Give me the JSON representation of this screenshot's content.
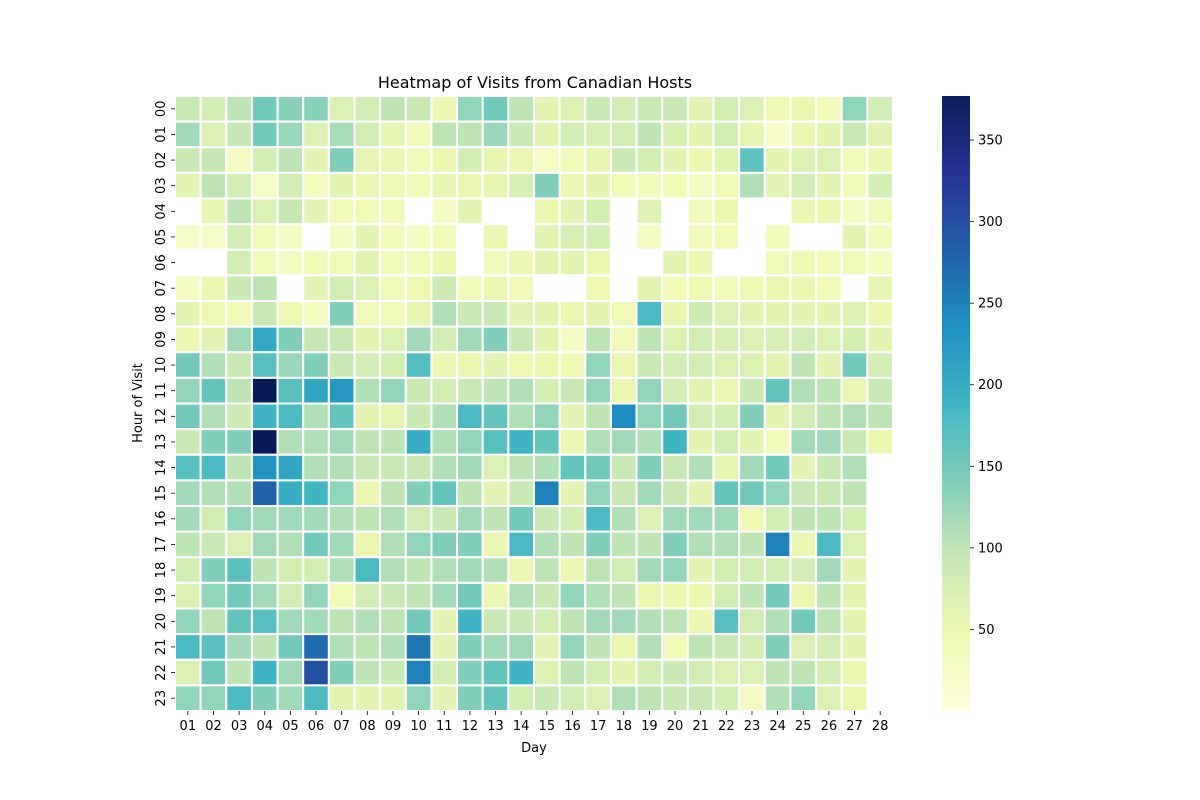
{
  "chart_data": {
    "type": "heatmap",
    "title": "Heatmap of Visits from Canadian Hosts",
    "xlabel": "Day",
    "ylabel": "Hour of Visit",
    "x_categories": [
      "01",
      "02",
      "03",
      "04",
      "05",
      "06",
      "07",
      "08",
      "09",
      "10",
      "11",
      "12",
      "13",
      "14",
      "15",
      "16",
      "17",
      "18",
      "19",
      "20",
      "21",
      "22",
      "23",
      "24",
      "25",
      "26",
      "27",
      "28"
    ],
    "y_categories": [
      "00",
      "01",
      "02",
      "03",
      "04",
      "05",
      "06",
      "07",
      "08",
      "09",
      "10",
      "11",
      "12",
      "13",
      "14",
      "15",
      "16",
      "17",
      "18",
      "19",
      "20",
      "21",
      "22",
      "23"
    ],
    "colorbar": {
      "min": 0,
      "max": 377,
      "ticks": [
        50,
        100,
        150,
        200,
        250,
        300,
        350
      ]
    },
    "colormap": "YlGnBu",
    "missing_color": "#ffffff",
    "values": [
      [
        90,
        80,
        100,
        150,
        135,
        135,
        70,
        80,
        100,
        90,
        50,
        130,
        150,
        100,
        60,
        70,
        90,
        80,
        90,
        90,
        60,
        80,
        70,
        45,
        50,
        40,
        130,
        80
      ],
      [
        120,
        70,
        95,
        150,
        125,
        70,
        115,
        80,
        55,
        40,
        100,
        100,
        125,
        90,
        60,
        80,
        75,
        80,
        100,
        75,
        60,
        80,
        55,
        20,
        50,
        60,
        90,
        60
      ],
      [
        90,
        95,
        30,
        80,
        100,
        60,
        140,
        55,
        50,
        40,
        50,
        80,
        55,
        50,
        25,
        40,
        55,
        90,
        80,
        60,
        50,
        65,
        165,
        60,
        70,
        70,
        40,
        50
      ],
      [
        60,
        100,
        80,
        25,
        80,
        30,
        60,
        50,
        45,
        40,
        55,
        50,
        55,
        75,
        140,
        50,
        60,
        40,
        35,
        40,
        30,
        40,
        110,
        60,
        80,
        60,
        40,
        80
      ],
      [
        null,
        55,
        100,
        70,
        95,
        60,
        40,
        40,
        40,
        null,
        30,
        60,
        null,
        null,
        50,
        60,
        80,
        null,
        65,
        null,
        40,
        50,
        null,
        null,
        50,
        50,
        30,
        40
      ],
      [
        25,
        25,
        80,
        40,
        30,
        null,
        30,
        60,
        35,
        30,
        40,
        null,
        50,
        null,
        60,
        75,
        80,
        null,
        30,
        null,
        40,
        40,
        null,
        35,
        null,
        null,
        60,
        35
      ],
      [
        null,
        null,
        80,
        40,
        30,
        40,
        40,
        60,
        40,
        40,
        50,
        null,
        40,
        50,
        60,
        60,
        50,
        null,
        null,
        60,
        50,
        null,
        null,
        40,
        45,
        40,
        40,
        30
      ],
      [
        30,
        50,
        90,
        100,
        null,
        60,
        80,
        70,
        40,
        45,
        85,
        35,
        50,
        40,
        null,
        null,
        45,
        null,
        60,
        40,
        45,
        35,
        45,
        50,
        50,
        40,
        null,
        55
      ],
      [
        60,
        45,
        40,
        90,
        45,
        30,
        140,
        40,
        40,
        55,
        110,
        90,
        90,
        60,
        60,
        50,
        60,
        40,
        180,
        55,
        85,
        70,
        60,
        60,
        60,
        60,
        70,
        50
      ],
      [
        50,
        60,
        120,
        205,
        140,
        95,
        90,
        60,
        70,
        120,
        80,
        120,
        140,
        90,
        60,
        30,
        100,
        40,
        100,
        70,
        80,
        75,
        70,
        75,
        80,
        70,
        80,
        60
      ],
      [
        150,
        110,
        90,
        170,
        125,
        140,
        90,
        80,
        80,
        175,
        50,
        50,
        60,
        45,
        50,
        45,
        130,
        50,
        90,
        80,
        80,
        70,
        70,
        60,
        100,
        60,
        150,
        80
      ],
      [
        130,
        160,
        100,
        377,
        170,
        210,
        225,
        110,
        130,
        90,
        80,
        90,
        100,
        110,
        80,
        90,
        130,
        50,
        130,
        80,
        60,
        50,
        90,
        160,
        110,
        100,
        50,
        90
      ],
      [
        150,
        110,
        85,
        190,
        180,
        110,
        160,
        60,
        55,
        90,
        110,
        180,
        160,
        110,
        130,
        60,
        100,
        240,
        130,
        150,
        80,
        80,
        140,
        60,
        80,
        100,
        110,
        100
      ],
      [
        90,
        140,
        140,
        377,
        110,
        110,
        120,
        100,
        100,
        200,
        110,
        130,
        170,
        190,
        160,
        50,
        110,
        120,
        110,
        190,
        60,
        80,
        60,
        40,
        120,
        120,
        90,
        50
      ],
      [
        170,
        180,
        100,
        230,
        210,
        110,
        110,
        90,
        90,
        90,
        110,
        120,
        70,
        100,
        110,
        160,
        150,
        90,
        140,
        90,
        110,
        55,
        120,
        150,
        60,
        90,
        110,
        null
      ],
      [
        120,
        110,
        110,
        280,
        200,
        190,
        130,
        50,
        100,
        140,
        160,
        100,
        60,
        90,
        250,
        60,
        130,
        90,
        120,
        90,
        60,
        160,
        150,
        130,
        90,
        90,
        100,
        null
      ],
      [
        120,
        80,
        130,
        120,
        120,
        120,
        110,
        100,
        110,
        80,
        90,
        120,
        100,
        150,
        90,
        80,
        180,
        110,
        70,
        120,
        120,
        120,
        45,
        80,
        100,
        100,
        80,
        null
      ],
      [
        100,
        90,
        70,
        120,
        110,
        150,
        120,
        50,
        110,
        130,
        140,
        140,
        50,
        180,
        110,
        100,
        140,
        100,
        100,
        140,
        110,
        110,
        100,
        250,
        50,
        180,
        70,
        null
      ],
      [
        80,
        140,
        170,
        100,
        80,
        80,
        110,
        180,
        110,
        100,
        110,
        120,
        110,
        50,
        100,
        50,
        100,
        80,
        120,
        130,
        60,
        80,
        80,
        80,
        80,
        120,
        60,
        null
      ],
      [
        70,
        130,
        150,
        120,
        80,
        130,
        40,
        80,
        90,
        100,
        120,
        150,
        50,
        110,
        90,
        130,
        110,
        100,
        50,
        50,
        50,
        80,
        100,
        150,
        50,
        100,
        60,
        null
      ],
      [
        130,
        100,
        160,
        170,
        120,
        120,
        100,
        110,
        100,
        150,
        60,
        190,
        90,
        90,
        80,
        100,
        120,
        120,
        110,
        100,
        50,
        170,
        80,
        110,
        150,
        100,
        60,
        null
      ],
      [
        180,
        170,
        120,
        100,
        150,
        270,
        110,
        100,
        110,
        260,
        60,
        140,
        120,
        120,
        60,
        130,
        100,
        50,
        110,
        40,
        100,
        90,
        80,
        140,
        70,
        80,
        60,
        null
      ],
      [
        70,
        150,
        100,
        190,
        120,
        300,
        140,
        100,
        90,
        250,
        80,
        140,
        160,
        190,
        70,
        100,
        80,
        60,
        80,
        90,
        80,
        70,
        70,
        100,
        100,
        80,
        50,
        null
      ],
      [
        130,
        130,
        180,
        140,
        120,
        180,
        60,
        60,
        60,
        130,
        60,
        140,
        160,
        80,
        90,
        80,
        70,
        110,
        100,
        90,
        90,
        80,
        30,
        110,
        130,
        70,
        50,
        null
      ]
    ]
  }
}
